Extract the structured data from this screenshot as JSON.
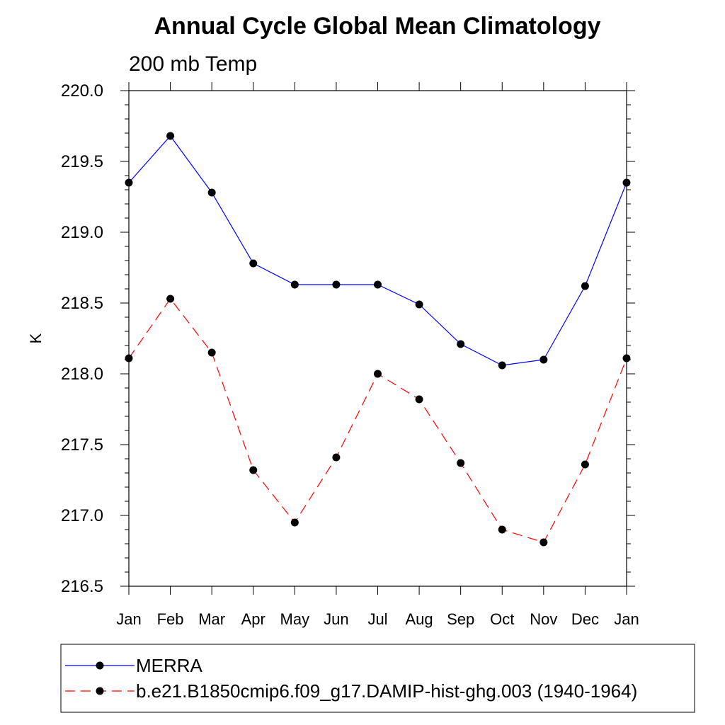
{
  "chart_data": {
    "type": "line",
    "title": "Annual Cycle Global Mean Climatology",
    "subtitle": "200 mb Temp",
    "ylabel": "K",
    "xlabel": "",
    "categories": [
      "Jan",
      "Feb",
      "Mar",
      "Apr",
      "May",
      "Jun",
      "Jul",
      "Aug",
      "Sep",
      "Oct",
      "Nov",
      "Dec",
      "Jan"
    ],
    "ylim": [
      216.5,
      220.0
    ],
    "yticks": [
      "216.5",
      "217.0",
      "217.5",
      "218.0",
      "218.5",
      "219.0",
      "219.5",
      "220.0"
    ],
    "grid": false,
    "legend_position": "bottom",
    "series": [
      {
        "name": "MERRA",
        "color": "#0000ff",
        "dash": "solid",
        "values": [
          219.35,
          219.68,
          219.28,
          218.78,
          218.63,
          218.63,
          218.63,
          218.49,
          218.21,
          218.06,
          218.1,
          218.62,
          219.35
        ]
      },
      {
        "name": "b.e21.B1850cmip6.f09_g17.DAMIP-hist-ghg.003 (1940-1964)",
        "color": "#ff0000",
        "dash": "dashed",
        "values": [
          218.11,
          218.53,
          218.15,
          217.32,
          216.95,
          217.41,
          218.0,
          217.82,
          217.37,
          216.9,
          216.81,
          217.36,
          218.11
        ]
      }
    ]
  }
}
